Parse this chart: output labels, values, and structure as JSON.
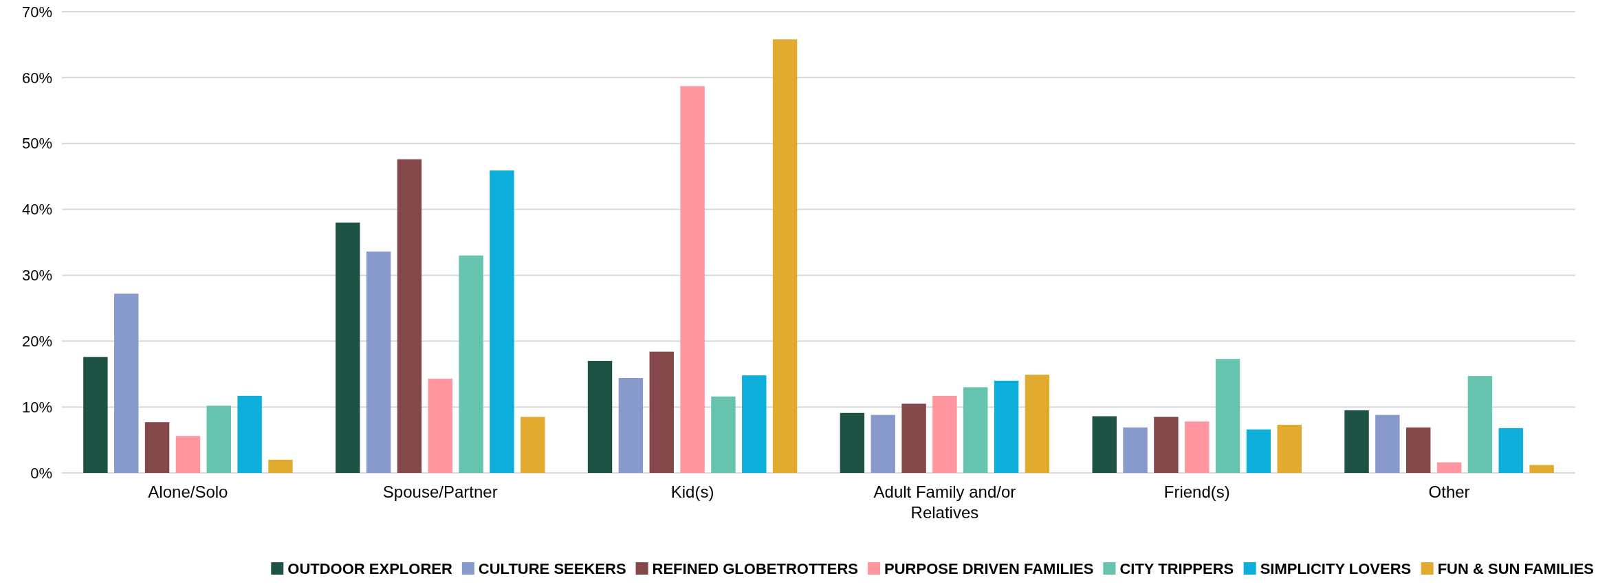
{
  "chart_data": {
    "type": "bar",
    "categories": [
      "Alone/Solo",
      "Spouse/Partner",
      "Kid(s)",
      "Adult Family and/or Relatives",
      "Friend(s)",
      "Other"
    ],
    "series": [
      {
        "name": "OUTDOOR EXPLORER",
        "color": "#1d5245",
        "values": [
          17.6,
          38.0,
          17.0,
          9.1,
          8.6,
          9.5
        ]
      },
      {
        "name": "CULTURE SEEKERS",
        "color": "#8899cc",
        "values": [
          27.2,
          33.6,
          14.4,
          8.8,
          6.9,
          8.8
        ]
      },
      {
        "name": "REFINED GLOBETROTTERS",
        "color": "#84484a",
        "values": [
          7.7,
          47.6,
          18.4,
          10.5,
          8.5,
          6.9
        ]
      },
      {
        "name": "PURPOSE DRIVEN FAMILIES",
        "color": "#ff96a0",
        "values": [
          5.6,
          14.3,
          58.7,
          11.7,
          7.8,
          1.6
        ]
      },
      {
        "name": "CITY TRIPPERS",
        "color": "#66c3ad",
        "values": [
          10.2,
          33.0,
          11.6,
          13.0,
          17.3,
          14.7
        ]
      },
      {
        "name": "SIMPLICITY LOVERS",
        "color": "#0eaeda",
        "values": [
          11.7,
          45.9,
          14.8,
          14.0,
          6.6,
          6.8
        ]
      },
      {
        "name": "FUN & SUN FAMILIES",
        "color": "#e0ab2e",
        "values": [
          2.0,
          8.5,
          65.8,
          14.9,
          7.3,
          1.2
        ]
      }
    ],
    "ylim": [
      0,
      70
    ],
    "yticks": [
      {
        "value": 0,
        "label": "0%"
      },
      {
        "value": 10,
        "label": "10%"
      },
      {
        "value": 20,
        "label": "20%"
      },
      {
        "value": 30,
        "label": "30%"
      },
      {
        "value": 40,
        "label": "40%"
      },
      {
        "value": 50,
        "label": "50%"
      },
      {
        "value": 60,
        "label": "60%"
      },
      {
        "value": 70,
        "label": "70%"
      }
    ],
    "grid": "y",
    "legend": "bottom"
  }
}
